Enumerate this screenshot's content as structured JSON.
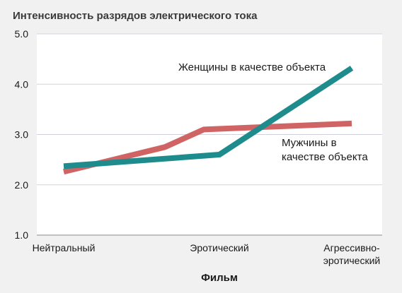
{
  "chart_data": {
    "type": "line",
    "title": "Интенсивность разрядов электрического тока",
    "xlabel": "Фильм",
    "ylabel": "",
    "categories": [
      [
        "Нейтральный"
      ],
      [
        "Эротический"
      ],
      [
        "Агрессивно-",
        "эротический"
      ]
    ],
    "ylim": [
      1.0,
      5.0
    ],
    "yticks": [
      "1.0",
      "2.0",
      "3.0",
      "4.0",
      "5.0"
    ],
    "grid": true,
    "series": [
      {
        "name": "Женщины в качестве объекта",
        "label_lines": [
          "Женщины в качестве объекта"
        ],
        "x": [
          0,
          1,
          2
        ],
        "values": [
          2.37,
          2.6,
          4.32
        ],
        "color": "#1e8c8c"
      },
      {
        "name": "Мужчины в качестве объекта",
        "label_lines": [
          "Мужчины в",
          "качестве объекта"
        ],
        "x": [
          0,
          0.65,
          0.9,
          2
        ],
        "values": [
          2.26,
          2.75,
          3.1,
          3.22
        ],
        "color": "#d06464"
      }
    ]
  }
}
